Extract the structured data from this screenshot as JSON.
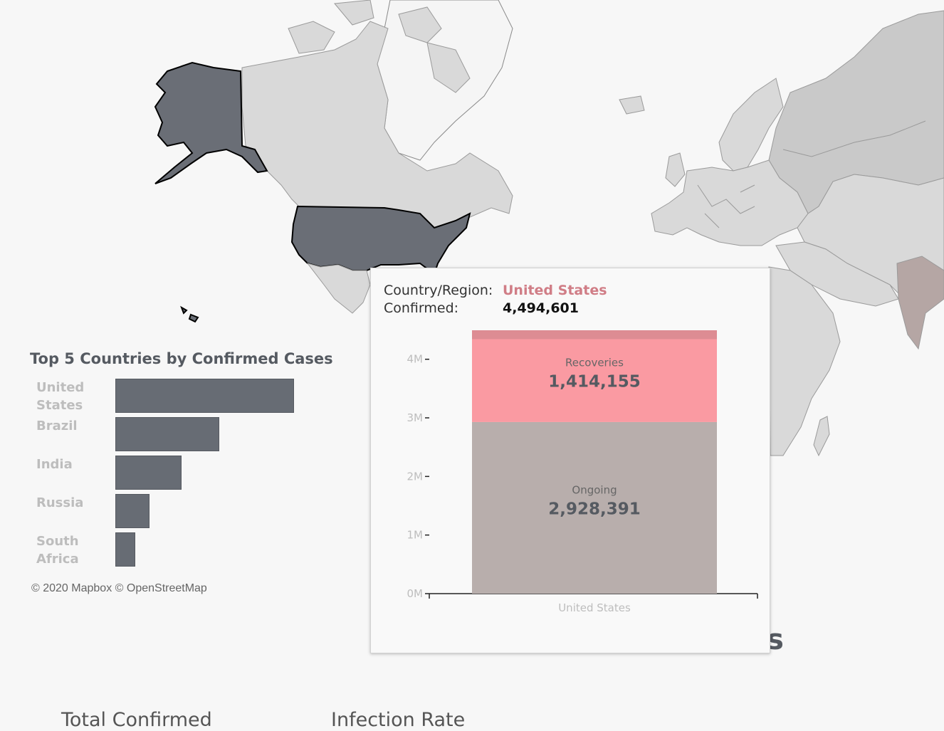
{
  "top5": {
    "title": "Top 5 Countries by Confirmed Cases",
    "countries": [
      "United States",
      "Brazil",
      "India",
      "Russia",
      "South Africa"
    ],
    "bar_fractions": [
      1.0,
      0.58,
      0.37,
      0.19,
      0.11
    ]
  },
  "attribution": "© 2020 Mapbox  © OpenStreetMap",
  "tooltip": {
    "country_key": "Country/Region:",
    "country_value": "United States",
    "confirmed_key": "Confirmed:",
    "confirmed_value": "4,494,601"
  },
  "chart_data": {
    "type": "bar",
    "stacked": true,
    "categories": [
      "United States"
    ],
    "series": [
      {
        "name": "Ongoing",
        "values": [
          2928391
        ],
        "label": "2,928,391",
        "color": "#b8aeac"
      },
      {
        "name": "Recoveries",
        "values": [
          1414155
        ],
        "label": "1,414,155",
        "color": "#fa9aa2"
      },
      {
        "name": "",
        "values": [
          152055
        ],
        "label": "",
        "color": "#dd8c93"
      }
    ],
    "yticks": [
      "0M",
      "1M",
      "2M",
      "3M",
      "4M"
    ],
    "ylim": [
      0,
      4494601
    ]
  },
  "background_text": {
    "total_confirmed": "Total Confirmed",
    "infection_rate": "Infection Rate",
    "partial_heading": "es"
  },
  "colors": {
    "highlight_country": "#6a6e76",
    "india": "#b5a6a4",
    "tooltip_country": "#d07d86"
  }
}
